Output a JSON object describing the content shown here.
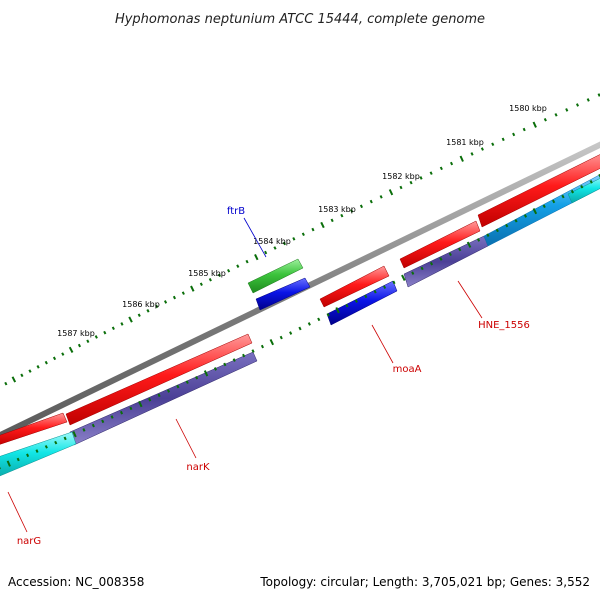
{
  "title": "Hyphomonas neptunium ATCC 15444, complete genome",
  "footer": {
    "accession": "Accession: NC_008358",
    "summary": "Topology: circular; Length: 3,705,021 bp; Genes: 3,552"
  },
  "ticks": [
    "1580 kbp",
    "1581 kbp",
    "1582 kbp",
    "1583 kbp",
    "1584 kbp",
    "1585 kbp",
    "1586 kbp",
    "1587 kbp"
  ],
  "gene_labels": {
    "ftrB": "ftrB",
    "moaA": "moaA",
    "HNE_1556": "HNE_1556",
    "narK": "narK",
    "narG": "narG"
  },
  "colors": {
    "backbone": "#808080",
    "tick": "#0a6e0a",
    "cds_red": "#ff1a1a",
    "cds_blue": "#0a14e6",
    "cds_green": "#3cc43c",
    "cds_purple": "#4b4096",
    "cds_cyan": "#12e6e6",
    "cds_skyblue": "#14a0e6",
    "label_red": "#cc0000",
    "label_blue": "#0000cc"
  }
}
